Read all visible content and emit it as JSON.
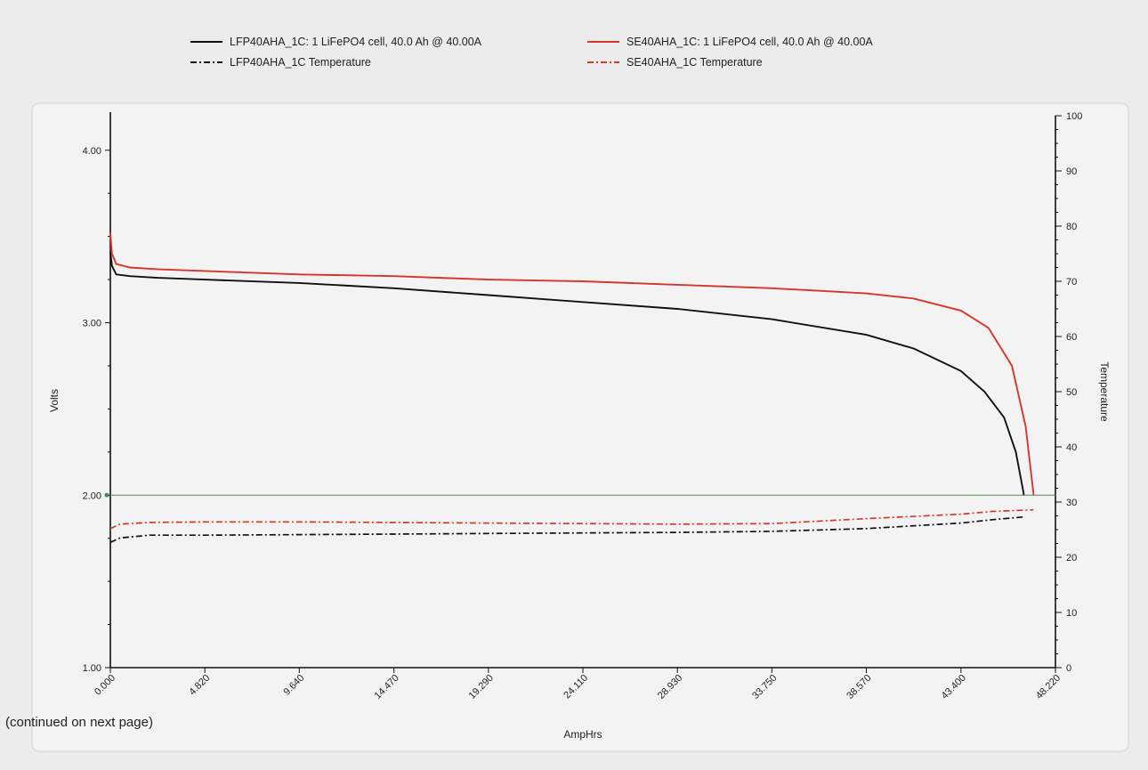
{
  "page": {
    "footer_note": "(continued on next page)"
  },
  "chart_data": {
    "type": "line",
    "xlabel": "AmpHrs",
    "ylabel": "Volts",
    "y2label": "Temperature",
    "xlim": [
      0,
      48.22
    ],
    "ylim": [
      1.0,
      4.2
    ],
    "y2lim": [
      0,
      100
    ],
    "x_ticks": [
      "0.000",
      "4.820",
      "9.640",
      "14.470",
      "19.290",
      "24.110",
      "28.930",
      "33.750",
      "38.570",
      "43.400",
      "48.220"
    ],
    "y_ticks": [
      "1.00",
      "2.00",
      "3.00",
      "4.00"
    ],
    "y2_ticks": [
      "0",
      "10",
      "20",
      "30",
      "40",
      "50",
      "60",
      "70",
      "80",
      "90",
      "100"
    ],
    "grid": false,
    "legend_position": "top",
    "reference_line": {
      "y": 2.0,
      "color": "#4a8a5a"
    },
    "series": [
      {
        "name": "LFP40AHA_1C: 1 LiFePO4 cell, 40.0 Ah @ 40.00A",
        "axis": "left",
        "color": "#111111",
        "dash": "solid",
        "x": [
          0,
          0.08,
          0.3,
          1.0,
          2.4,
          4.82,
          9.64,
          14.47,
          19.29,
          24.11,
          28.93,
          33.75,
          38.57,
          41.0,
          43.4,
          44.6,
          45.6,
          46.2,
          46.6
        ],
        "y": [
          3.41,
          3.33,
          3.28,
          3.27,
          3.26,
          3.25,
          3.23,
          3.2,
          3.16,
          3.12,
          3.08,
          3.02,
          2.93,
          2.85,
          2.72,
          2.6,
          2.45,
          2.25,
          2.01
        ]
      },
      {
        "name": "SE40AHA_1C: 1 LiFePO4 cell, 40.0 Ah @ 40.00A",
        "axis": "left",
        "color": "#d8362a",
        "dash": "solid",
        "x": [
          0,
          0.08,
          0.3,
          1.0,
          2.4,
          4.82,
          9.64,
          14.47,
          19.29,
          24.11,
          28.93,
          33.75,
          38.57,
          41.0,
          43.4,
          44.8,
          46.0,
          46.7,
          47.1
        ],
        "y": [
          3.52,
          3.4,
          3.34,
          3.32,
          3.31,
          3.3,
          3.28,
          3.27,
          3.25,
          3.24,
          3.22,
          3.2,
          3.17,
          3.14,
          3.07,
          2.97,
          2.75,
          2.4,
          2.01
        ]
      },
      {
        "name": "LFP40AHA_1C Temperature",
        "axis": "right",
        "color": "#111111",
        "dash": "dashdot",
        "x": [
          0,
          0.5,
          2.0,
          4.82,
          9.64,
          14.47,
          19.29,
          24.11,
          28.93,
          33.75,
          38.57,
          43.4,
          45.0,
          46.6
        ],
        "y": [
          22.7,
          23.5,
          24.0,
          24.0,
          24.1,
          24.2,
          24.3,
          24.4,
          24.5,
          24.7,
          25.2,
          26.2,
          26.8,
          27.3
        ]
      },
      {
        "name": "SE40AHA_1C Temperature",
        "axis": "right",
        "color": "#d8362a",
        "dash": "dashdot",
        "x": [
          0,
          0.5,
          2.0,
          4.82,
          9.64,
          14.47,
          19.29,
          24.11,
          28.93,
          33.75,
          38.57,
          43.4,
          45.0,
          47.1
        ],
        "y": [
          25.2,
          26.0,
          26.3,
          26.4,
          26.4,
          26.3,
          26.2,
          26.1,
          26.0,
          26.1,
          27.0,
          27.8,
          28.3,
          28.6
        ]
      }
    ]
  }
}
